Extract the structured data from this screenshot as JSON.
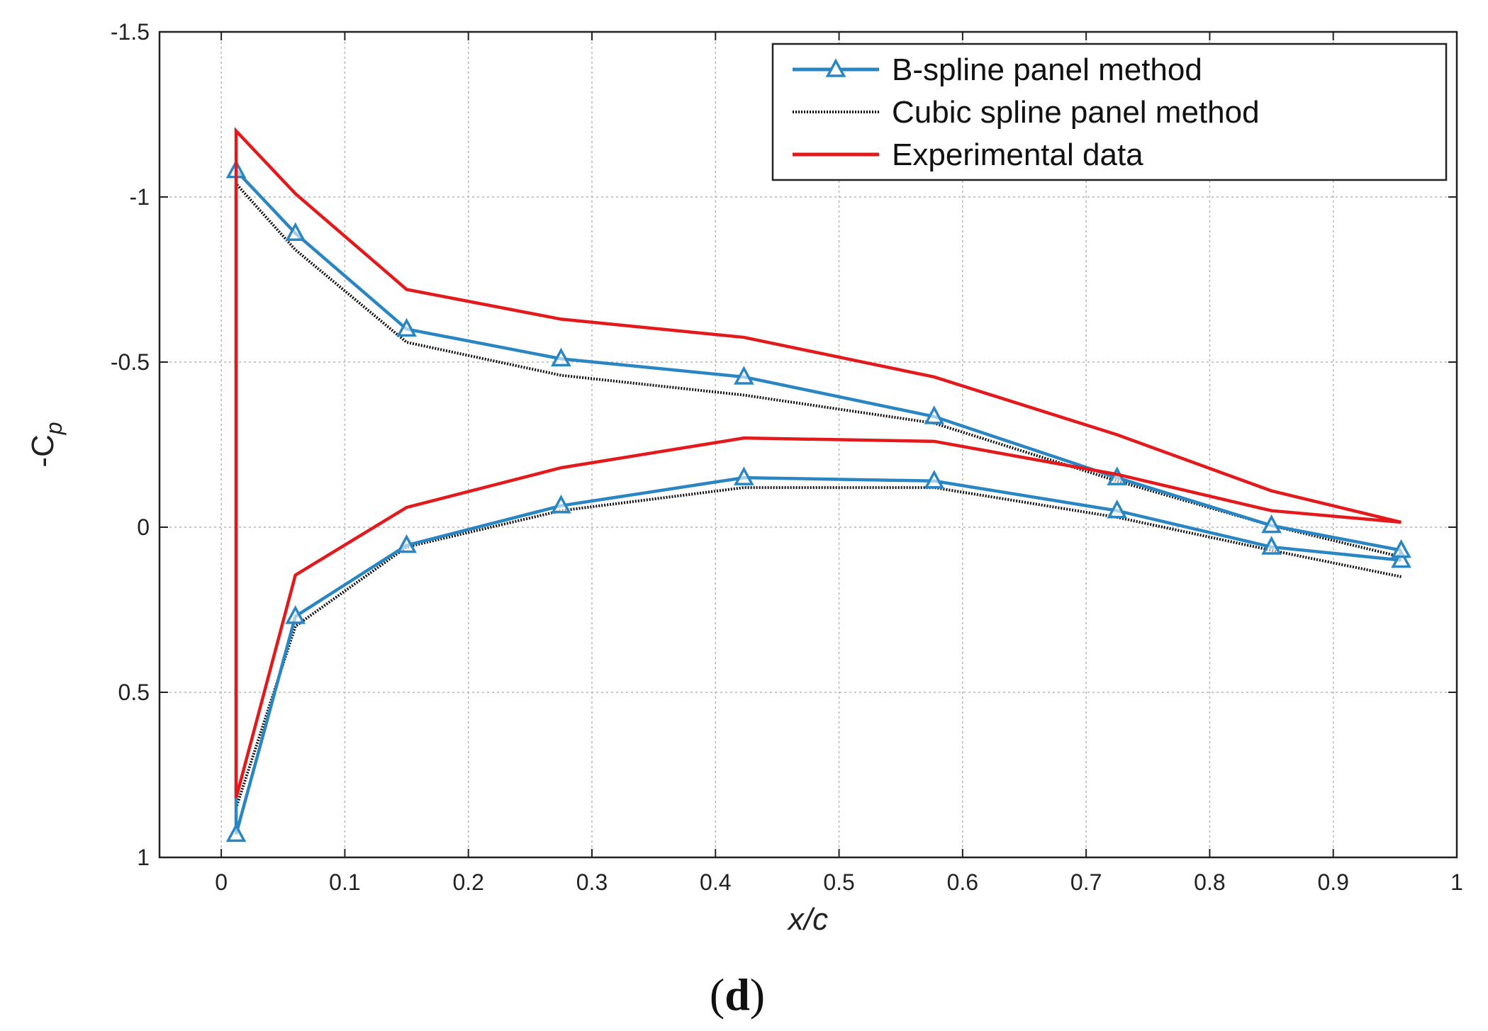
{
  "chart_data": {
    "type": "line",
    "xlabel": "x/c",
    "ylabel_prefix": "-C",
    "ylabel_sub": "p",
    "xlim": [
      -0.05,
      1.0
    ],
    "ylim": [
      1.0,
      -1.5
    ],
    "xticks": [
      0,
      0.1,
      0.2,
      0.3,
      0.4,
      0.5,
      0.6,
      0.7,
      0.8,
      0.9,
      1
    ],
    "xtick_labels": [
      "0",
      "0.1",
      "0.2",
      "0.3",
      "0.4",
      "0.5",
      "0.6",
      "0.7",
      "0.8",
      "0.9",
      "1"
    ],
    "yticks": [
      -1.5,
      -1,
      -0.5,
      0,
      0.5,
      1
    ],
    "ytick_labels": [
      "-1.5",
      "-1",
      "-0.5",
      "0",
      "0.5",
      "1"
    ],
    "grid": true,
    "legend_position": "top-right",
    "caption": "(d)",
    "series": [
      {
        "name": "B-spline panel method",
        "color": "#2a86c2",
        "style": "solid-triangle",
        "x": [
          0.955,
          0.85,
          0.725,
          0.577,
          0.423,
          0.275,
          0.15,
          0.06,
          0.012,
          0.012,
          0.06,
          0.15,
          0.275,
          0.423,
          0.577,
          0.725,
          0.85,
          0.955
        ],
        "y": [
          0.1,
          0.06,
          -0.05,
          -0.14,
          -0.15,
          -0.065,
          0.055,
          0.27,
          0.93,
          -1.08,
          -0.89,
          -0.6,
          -0.51,
          -0.455,
          -0.335,
          -0.15,
          -0.005,
          0.07
        ]
      },
      {
        "name": "Cubic spline panel method",
        "color": "#111111",
        "style": "dotted",
        "x": [
          0.955,
          0.85,
          0.725,
          0.577,
          0.423,
          0.275,
          0.15,
          0.06,
          0.012,
          0.012,
          0.06,
          0.15,
          0.275,
          0.423,
          0.577,
          0.725,
          0.85,
          0.955
        ],
        "y": [
          0.15,
          0.07,
          -0.03,
          -0.12,
          -0.12,
          -0.05,
          0.06,
          0.3,
          0.85,
          -1.04,
          -0.84,
          -0.56,
          -0.46,
          -0.4,
          -0.315,
          -0.14,
          -0.005,
          0.09
        ]
      },
      {
        "name": "Experimental data",
        "color": "#e3191c",
        "style": "solid",
        "x": [
          0.955,
          0.85,
          0.725,
          0.577,
          0.423,
          0.275,
          0.15,
          0.06,
          0.012,
          0.012,
          0.06,
          0.15,
          0.275,
          0.423,
          0.577,
          0.725,
          0.85,
          0.955
        ],
        "y": [
          -0.015,
          -0.11,
          -0.28,
          -0.455,
          -0.575,
          -0.63,
          -0.72,
          -1.01,
          -1.2,
          0.82,
          0.145,
          -0.06,
          -0.18,
          -0.27,
          -0.26,
          -0.16,
          -0.05,
          -0.015
        ]
      }
    ]
  }
}
